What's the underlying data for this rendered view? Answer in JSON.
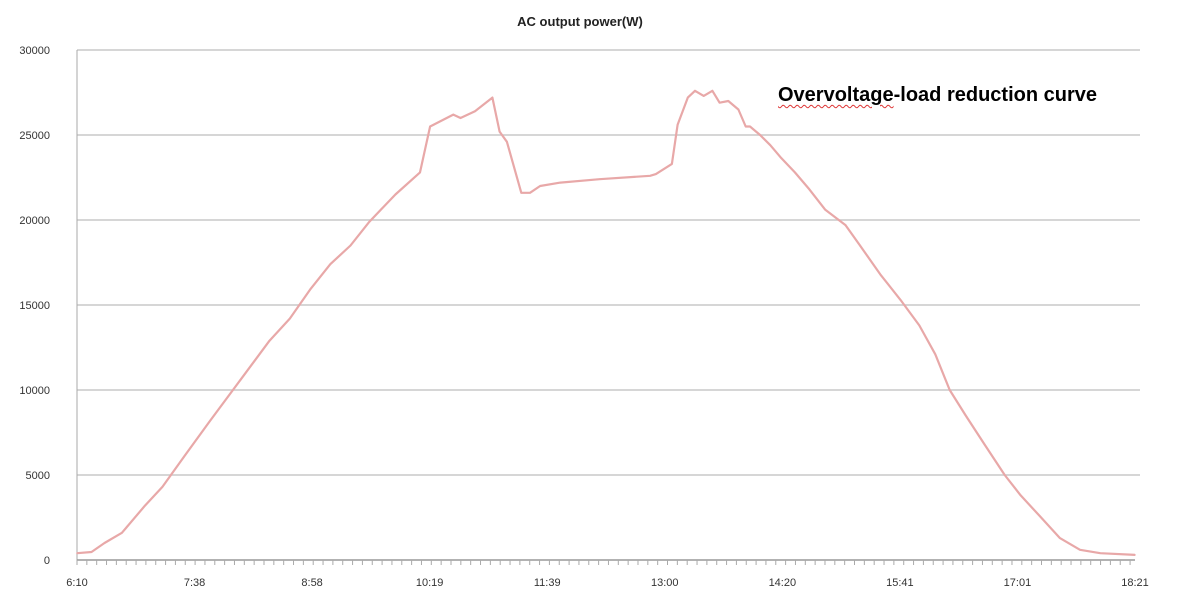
{
  "chart_data": {
    "type": "line",
    "title": "AC output power(W)",
    "annotation": {
      "prefix": "Overvoltage",
      "rest": "-load reduction curve"
    },
    "xlabel": "",
    "ylabel": "",
    "x_tick_labels": [
      "6:10",
      "7:38",
      "8:58",
      "10:19",
      "11:39",
      "13:00",
      "14:20",
      "15:41",
      "17:01",
      "18:21"
    ],
    "xlim": [
      "6:10",
      "18:21"
    ],
    "ylim": [
      0,
      30000
    ],
    "y_ticks": [
      0,
      5000,
      10000,
      15000,
      20000,
      25000,
      30000
    ],
    "grid": true,
    "line_color": "#e8a8a8",
    "series": [
      {
        "x": [
          "6:10",
          "6:20",
          "6:29",
          "6:41",
          "6:57",
          "7:09",
          "7:25",
          "7:42",
          "8:03",
          "8:23",
          "8:37",
          "8:51",
          "9:05",
          "9:19",
          "9:32",
          "9:50",
          "10:07",
          "10:14",
          "10:30",
          "10:35",
          "10:45",
          "10:57",
          "11:02",
          "11:07",
          "11:17",
          "11:23",
          "11:30",
          "11:44",
          "12:11",
          "12:46",
          "12:50",
          "13:01",
          "13:05",
          "13:12",
          "13:17",
          "13:23",
          "13:29",
          "13:34",
          "13:40",
          "13:47",
          "13:52",
          "13:55",
          "14:02",
          "14:09",
          "14:16",
          "14:26",
          "14:36",
          "14:47",
          "15:01",
          "15:11",
          "15:25",
          "15:39",
          "15:52",
          "16:03",
          "16:13",
          "16:24",
          "16:37",
          "16:51",
          "17:02",
          "17:15",
          "17:29",
          "17:43",
          "17:57",
          "18:21"
        ],
        "y": [
          400,
          470,
          1000,
          1600,
          3200,
          4300,
          6200,
          8200,
          10600,
          12900,
          14200,
          15900,
          17400,
          18500,
          19900,
          21500,
          22800,
          25500,
          26200,
          26000,
          26400,
          27200,
          25200,
          24600,
          21600,
          21600,
          22000,
          22200,
          22400,
          22600,
          22700,
          23300,
          25600,
          27200,
          27600,
          27300,
          27600,
          26900,
          27000,
          26500,
          25500,
          25500,
          25000,
          24400,
          23700,
          22800,
          21800,
          20600,
          19700,
          18500,
          16800,
          15300,
          13800,
          12100,
          10000,
          8500,
          6800,
          5000,
          3800,
          2600,
          1300,
          600,
          400,
          300
        ]
      }
    ]
  }
}
